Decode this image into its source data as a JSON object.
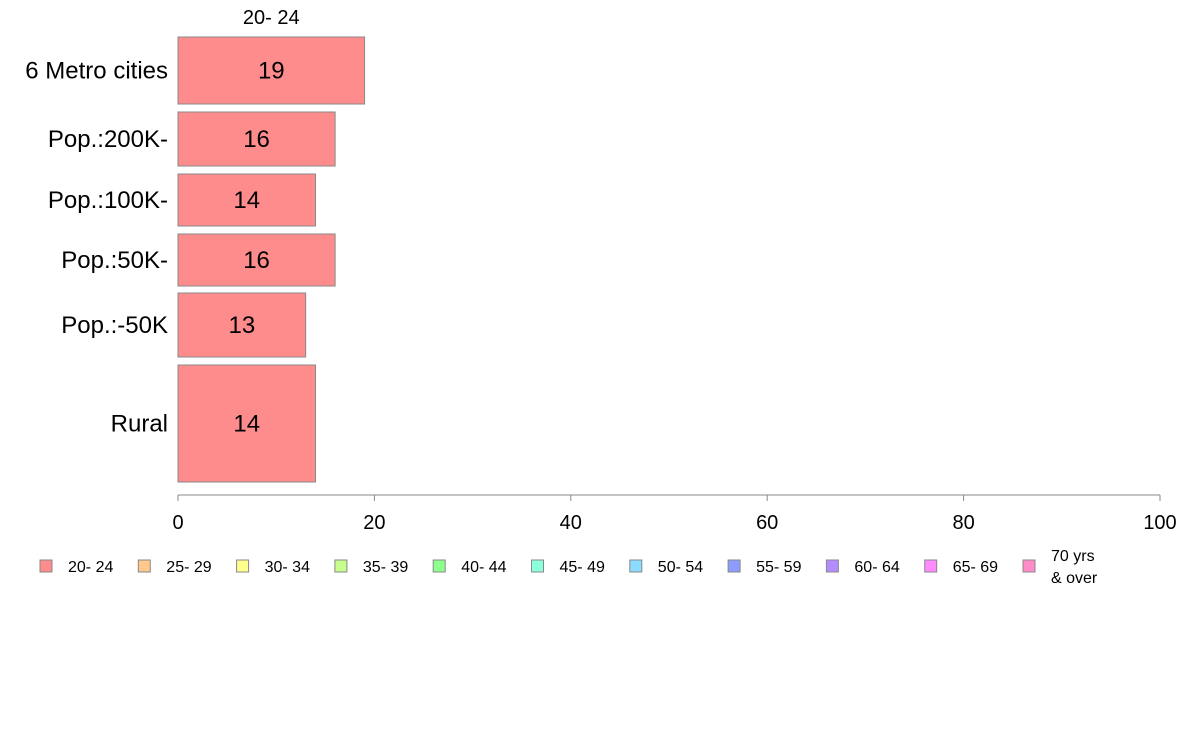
{
  "chart_data": {
    "type": "bar",
    "orientation": "horizontal",
    "stacked": true,
    "segment_labels": [
      "20- 24"
    ],
    "categories": [
      "6 Metro cities",
      "Pop.:200K-",
      "Pop.:100K-",
      "Pop.:50K-",
      "Pop.:-50K",
      "Rural"
    ],
    "series": [
      {
        "name": "20- 24",
        "values": [
          19,
          16,
          14,
          16,
          13,
          14
        ],
        "color": "#ff8c8c"
      },
      {
        "name": "25- 29",
        "values": [
          0,
          0,
          0,
          0,
          0,
          0
        ],
        "color": "#ffc88c"
      },
      {
        "name": "30- 34",
        "values": [
          0,
          0,
          0,
          0,
          0,
          0
        ],
        "color": "#ffff8c"
      },
      {
        "name": "35- 39",
        "values": [
          0,
          0,
          0,
          0,
          0,
          0
        ],
        "color": "#c8ff8c"
      },
      {
        "name": "40- 44",
        "values": [
          0,
          0,
          0,
          0,
          0,
          0
        ],
        "color": "#8cff8c"
      },
      {
        "name": "45- 49",
        "values": [
          0,
          0,
          0,
          0,
          0,
          0
        ],
        "color": "#8cffdc"
      },
      {
        "name": "50- 54",
        "values": [
          0,
          0,
          0,
          0,
          0,
          0
        ],
        "color": "#8cdcff"
      },
      {
        "name": "55- 59",
        "values": [
          0,
          0,
          0,
          0,
          0,
          0
        ],
        "color": "#8c9cff"
      },
      {
        "name": "60- 64",
        "values": [
          0,
          0,
          0,
          0,
          0,
          0
        ],
        "color": "#b48cff"
      },
      {
        "name": "65- 69",
        "values": [
          0,
          0,
          0,
          0,
          0,
          0
        ],
        "color": "#ff8cff"
      },
      {
        "name": "70 yrs\n& over",
        "values": [
          0,
          0,
          0,
          0,
          0,
          0
        ],
        "color": "#ff8cc8"
      }
    ],
    "xlim": [
      0,
      100
    ],
    "xticks": [
      0,
      20,
      40,
      60,
      80,
      100
    ],
    "grid": false,
    "legend_position": "bottom",
    "bar_edge_color": "#888888",
    "axis_color": "#888888"
  }
}
